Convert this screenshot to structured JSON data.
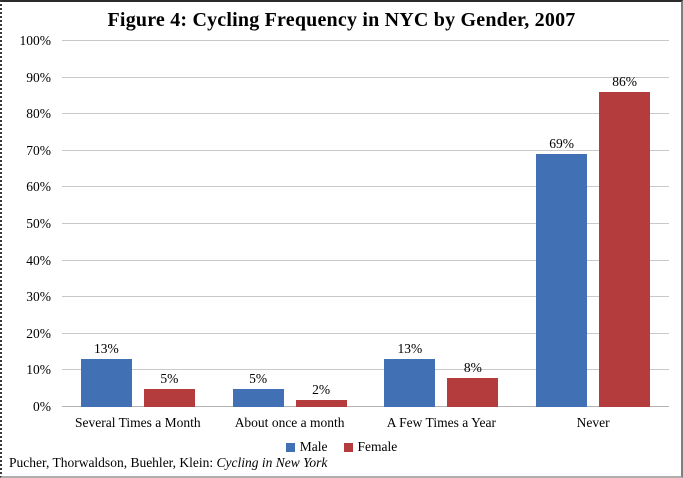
{
  "chart_data": {
    "type": "bar",
    "title": "Figure 4: Cycling Frequency in NYC by Gender, 2007",
    "categories": [
      "Several Times a Month",
      "About once a month",
      "A Few Times a Year",
      "Never"
    ],
    "series": [
      {
        "name": "Male",
        "color": "#4170B4",
        "values": [
          13,
          5,
          13,
          69
        ]
      },
      {
        "name": "Female",
        "color": "#B43C3C",
        "values": [
          5,
          2,
          8,
          86
        ]
      }
    ],
    "value_suffix": "%",
    "data_labels": true,
    "ylim": [
      0,
      100
    ],
    "yticks": [
      "0%",
      "10%",
      "20%",
      "30%",
      "40%",
      "50%",
      "60%",
      "70%",
      "80%",
      "90%",
      "100%"
    ],
    "grid": true,
    "legend_position": "bottom"
  },
  "footer": {
    "citation_prefix": "Pucher, Thorwaldson, Buehler, Klein: ",
    "citation_source": "Cycling in New York"
  }
}
